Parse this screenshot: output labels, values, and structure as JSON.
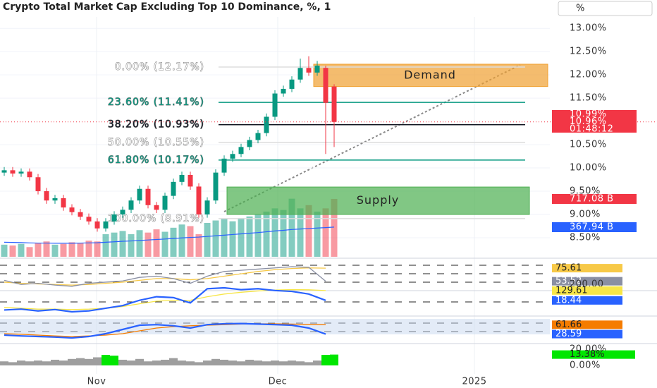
{
  "title": "Crypto Total Market Cap Excluding Top 10 Dominance, %, 1",
  "scale_label": "%",
  "chart_data": {
    "type": "candlestick",
    "x_labels": [
      "Nov",
      "Dec",
      "2025"
    ],
    "ylim": [
      8.09,
      13.61
    ],
    "yticks": [
      {
        "value": 13,
        "label": "13.00%"
      },
      {
        "value": 12.5,
        "label": "12.50%"
      },
      {
        "value": 12,
        "label": "12.00%"
      },
      {
        "value": 11.5,
        "label": "11.50%"
      },
      {
        "value": 10.5,
        "label": "10.50%"
      },
      {
        "value": 10,
        "label": "10.00%"
      },
      {
        "value": 9.5,
        "label": "9.50%"
      },
      {
        "value": 9,
        "label": "9.00%"
      },
      {
        "value": 8.5,
        "label": "8.50%"
      }
    ],
    "up_color": "#089981",
    "down_color": "#f23645",
    "open": [
      9.9,
      9.95,
      9.88,
      9.92,
      9.8,
      9.5,
      9.3,
      9.35,
      9.15,
      9.05,
      8.95,
      8.85,
      8.7,
      8.85,
      9.0,
      9.1,
      9.3,
      9.55,
      9.2,
      9.1,
      9.4,
      9.7,
      9.85,
      9.6,
      9.0,
      9.3,
      9.9,
      10.2,
      10.3,
      10.45,
      10.6,
      10.75,
      11.1,
      11.6,
      11.7,
      11.9,
      12.15,
      12.05,
      12.15,
      11.75
    ],
    "high": [
      10.02,
      10.02,
      9.99,
      9.99,
      9.87,
      9.57,
      9.42,
      9.42,
      9.22,
      9.12,
      9.02,
      8.92,
      8.92,
      9.07,
      9.17,
      9.37,
      9.62,
      9.62,
      9.27,
      9.47,
      9.77,
      9.92,
      9.92,
      9.67,
      9.37,
      9.97,
      10.27,
      10.37,
      10.52,
      10.67,
      10.82,
      11.17,
      11.67,
      11.77,
      11.97,
      12.35,
      12.4,
      12.3,
      12.2,
      11.8
    ],
    "low": [
      9.83,
      9.81,
      9.81,
      9.73,
      9.43,
      9.23,
      9.23,
      9.08,
      8.98,
      8.88,
      8.78,
      8.63,
      8.63,
      8.78,
      8.93,
      9.03,
      9.23,
      9.13,
      9.03,
      9.03,
      9.33,
      9.63,
      9.53,
      8.93,
      8.93,
      9.23,
      9.83,
      10.13,
      10.23,
      10.38,
      10.53,
      10.68,
      11.03,
      11.53,
      11.63,
      11.83,
      11.98,
      11.98,
      10.3,
      10.45
    ],
    "close": [
      9.95,
      9.88,
      9.92,
      9.8,
      9.5,
      9.3,
      9.35,
      9.15,
      9.05,
      8.95,
      8.85,
      8.7,
      8.85,
      9.0,
      9.1,
      9.3,
      9.55,
      9.2,
      9.1,
      9.4,
      9.7,
      9.85,
      9.6,
      9.0,
      9.3,
      9.9,
      10.2,
      10.3,
      10.45,
      10.6,
      10.75,
      11.1,
      11.6,
      11.7,
      11.9,
      12.15,
      12.05,
      12.2,
      11.4,
      10.99
    ],
    "volume_ylim": [
      0,
      3182
    ],
    "volume": [
      150,
      140,
      160,
      120,
      170,
      190,
      150,
      160,
      180,
      170,
      200,
      190,
      280,
      300,
      320,
      280,
      330,
      300,
      340,
      310,
      360,
      400,
      380,
      280,
      420,
      450,
      470,
      440,
      480,
      500,
      520,
      560,
      600,
      580,
      720,
      600,
      640,
      560,
      600,
      717.08
    ],
    "volume_ma": [
      180,
      178,
      176,
      172,
      170,
      170,
      168,
      168,
      168,
      170,
      172,
      174,
      180,
      186,
      192,
      196,
      202,
      208,
      214,
      220,
      226,
      234,
      240,
      244,
      252,
      260,
      268,
      276,
      284,
      292,
      300,
      310,
      320,
      328,
      338,
      344,
      350,
      356,
      362,
      367.94
    ],
    "volume_ma_color": "#2962ff",
    "fib_levels": [
      {
        "value": 12.17,
        "label": "0.00% (12.17%)",
        "color": "#ffffff"
      },
      {
        "value": 11.41,
        "label": "23.60% (11.41%)",
        "color": "#089981"
      },
      {
        "value": 10.93,
        "label": "38.20% (10.93%)",
        "color": "#131722"
      },
      {
        "value": 10.55,
        "label": "50.00% (10.55%)",
        "color": "#ffffff"
      },
      {
        "value": 10.17,
        "label": "61.80% (10.17%)",
        "color": "#089981"
      },
      {
        "value": 8.91,
        "label": "100.00% (8.91%)",
        "color": "#ffffff"
      }
    ],
    "zones": [
      {
        "label": "Demand",
        "top": 12.23,
        "bottom": 11.75,
        "color": "#f0a030"
      },
      {
        "label": "Supply",
        "top": 9.59,
        "bottom": 9.0,
        "color": "#4caf50"
      }
    ],
    "price_badges": [
      "10.99%",
      "10.96%",
      "01:48:12"
    ],
    "volume_badges": [
      "717.08 B",
      "367.94 B"
    ],
    "indicators": [
      {
        "ylim": [
          40,
          90
        ],
        "series": [
          {
            "color": "#f7c948",
            "values": [
              52,
              50,
              49,
              48,
              47,
              48,
              50,
              52,
              55,
              58,
              58,
              56,
              58,
              62,
              66,
              70,
              73,
              75,
              76,
              75.61
            ],
            "badge": "75.61"
          },
          {
            "color": "#8a8fa3",
            "values": [
              55,
              48,
              50,
              47,
              45,
              50,
              52,
              54,
              60,
              62,
              58,
              50,
              62,
              70,
              72,
              74,
              76,
              78,
              77,
              53.52
            ],
            "badge": "53.52"
          }
        ]
      },
      {
        "ylim": [
          -150,
          200
        ],
        "yticks": [
          {
            "value": 200,
            "label": "200.00"
          }
        ],
        "series": [
          {
            "color": "#f7e648",
            "values": [
              -60,
              -70,
              -80,
              -80,
              -85,
              -80,
              -70,
              -50,
              -20,
              10,
              20,
              20,
              60,
              90,
              110,
              125,
              135,
              140,
              138,
              129.61
            ],
            "badge": "129.61"
          },
          {
            "color": "#2962ff",
            "values": [
              -90,
              -80,
              -100,
              -85,
              -110,
              -100,
              -70,
              -40,
              20,
              60,
              50,
              -10,
              150,
              160,
              140,
              150,
              130,
              120,
              90,
              18.44
            ],
            "badge": "18.44"
          }
        ]
      },
      {
        "ylim": [
          0,
          100
        ],
        "series": [
          {
            "color": "#f57c00",
            "values": [
              30,
              28,
              25,
              22,
              20,
              22,
              25,
              30,
              40,
              50,
              55,
              58,
              60,
              62,
              64,
              65,
              65,
              64,
              63,
              61.66
            ],
            "badge": "61.66"
          },
          {
            "color": "#2962ff",
            "values": [
              25,
              22,
              20,
              18,
              15,
              20,
              30,
              45,
              60,
              62,
              58,
              50,
              62,
              65,
              66,
              64,
              62,
              60,
              50,
              28.59
            ],
            "badge": "28.59"
          }
        ]
      },
      {
        "ylim": [
          0,
          20
        ],
        "yticks": [
          {
            "value": 20,
            "label": "20.00%"
          },
          {
            "value": 0,
            "label": "0.00%"
          }
        ],
        "bars": [
          5,
          4,
          6,
          5,
          6,
          5,
          7,
          6,
          8,
          9,
          8,
          10,
          13,
          12,
          7,
          6,
          8,
          5,
          6,
          7,
          9,
          6,
          5,
          4,
          6,
          8,
          7,
          6,
          5,
          7,
          6,
          5,
          6,
          5,
          6,
          5,
          4,
          6,
          13,
          13.38
        ],
        "bar_colors": [
          "#9e9e9e",
          "#9e9e9e",
          "#9e9e9e",
          "#9e9e9e",
          "#9e9e9e",
          "#9e9e9e",
          "#9e9e9e",
          "#9e9e9e",
          "#9e9e9e",
          "#9e9e9e",
          "#9e9e9e",
          "#9e9e9e",
          "#00e600",
          "#00e600",
          "#9e9e9e",
          "#9e9e9e",
          "#9e9e9e",
          "#9e9e9e",
          "#9e9e9e",
          "#9e9e9e",
          "#9e9e9e",
          "#9e9e9e",
          "#9e9e9e",
          "#9e9e9e",
          "#9e9e9e",
          "#9e9e9e",
          "#9e9e9e",
          "#9e9e9e",
          "#9e9e9e",
          "#9e9e9e",
          "#9e9e9e",
          "#9e9e9e",
          "#9e9e9e",
          "#9e9e9e",
          "#9e9e9e",
          "#9e9e9e",
          "#9e9e9e",
          "#9e9e9e",
          "#00e600",
          "#00e600"
        ],
        "badge": "13.38%",
        "badge_color": "#00e600"
      }
    ]
  }
}
